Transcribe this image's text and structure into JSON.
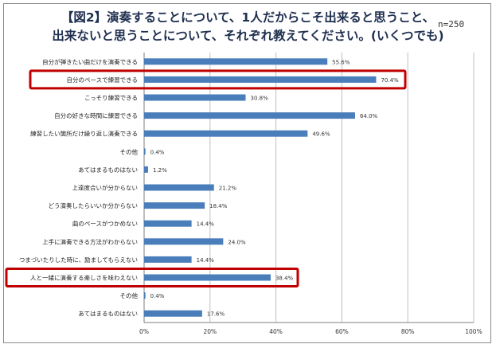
{
  "title_line1": "【図2】演奏することについて、1人だからこそ出来ると思うこと、",
  "title_line2": "出来ないと思うことについて、それぞれ教えてください。(いくつでも)",
  "sample_note": "n=250",
  "chart_data": {
    "type": "bar",
    "orientation": "horizontal",
    "title": "【図2】演奏することについて、1人だからこそ出来ると思うこと、出来ないと思うことについて、それぞれ教えてください。(いくつでも)",
    "xlim": [
      0,
      100
    ],
    "xticks": [
      "0%",
      "20%",
      "40%",
      "60%",
      "80%",
      "100%"
    ],
    "grid": true,
    "bar_color": "#4a7ebb",
    "highlight_color": "#c00000",
    "categories": [
      "自分が弾きたい曲だけを演奏できる",
      "自分のペースで練習できる",
      "こっそり練習できる",
      "自分の好きな時間に練習できる",
      "練習したい箇所だけ繰り返し演奏できる",
      "その他",
      "あてはまるものはない",
      "上達度合いが分からない",
      "どう演奏したらいいか分からない",
      "曲のペースがつかめない",
      "上手に演奏できる方法がわからない",
      "つまづいたりした時に、励ましてもらえない",
      "人と一緒に演奏する楽しさを味わえない",
      "その他",
      "あてはまるものはない"
    ],
    "values": [
      55.6,
      70.4,
      30.8,
      64.0,
      49.6,
      0.4,
      1.2,
      21.2,
      18.4,
      14.4,
      24.0,
      14.4,
      38.4,
      0.4,
      17.6
    ],
    "value_labels": [
      "55.6%",
      "70.4%",
      "30.8%",
      "64.0%",
      "49.6%",
      "0.4%",
      "1.2%",
      "21.2%",
      "18.4%",
      "14.4%",
      "24.0%",
      "14.4%",
      "38.4%",
      "0.4%",
      "17.6%"
    ],
    "highlighted": [
      1,
      12
    ]
  }
}
